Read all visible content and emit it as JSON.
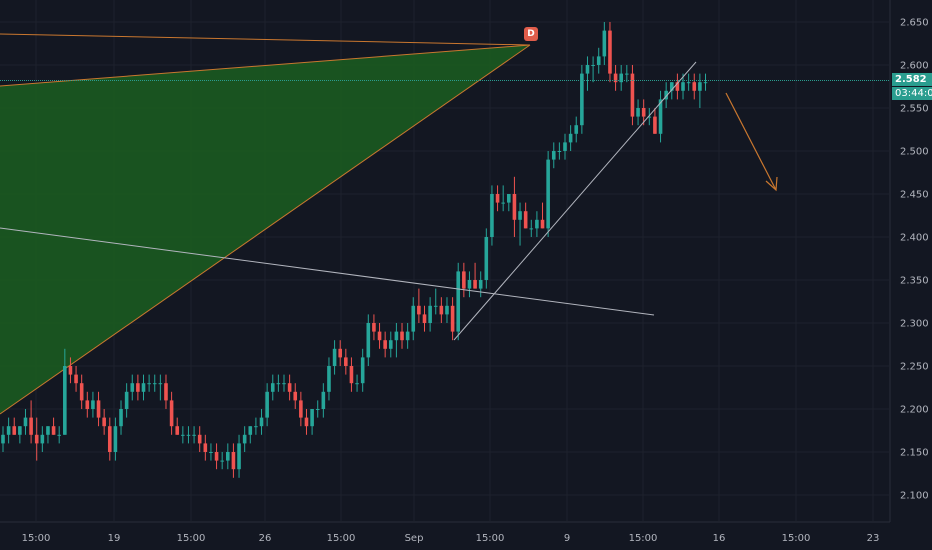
{
  "chart_data": {
    "type": "candlestick",
    "title": "",
    "ylim": [
      2.07,
      2.67
    ],
    "y_ticks": [
      "2.650",
      "2.600",
      "2.550",
      "2.500",
      "2.450",
      "2.400",
      "2.350",
      "2.300",
      "2.250",
      "2.200",
      "2.150",
      "2.100"
    ],
    "x_ticks": [
      "15:00",
      "19",
      "15:00",
      "26",
      "15:00",
      "Sep",
      "15:00",
      "9",
      "15:00",
      "16",
      "15:00",
      "23"
    ],
    "candles": [
      [
        2.16,
        2.18,
        2.15,
        2.17
      ],
      [
        2.17,
        2.19,
        2.16,
        2.18
      ],
      [
        2.18,
        2.19,
        2.17,
        2.17
      ],
      [
        2.17,
        2.18,
        2.16,
        2.18
      ],
      [
        2.18,
        2.2,
        2.17,
        2.19
      ],
      [
        2.19,
        2.21,
        2.16,
        2.17
      ],
      [
        2.17,
        2.19,
        2.14,
        2.16
      ],
      [
        2.16,
        2.18,
        2.15,
        2.17
      ],
      [
        2.17,
        2.18,
        2.16,
        2.18
      ],
      [
        2.18,
        2.19,
        2.17,
        2.17
      ],
      [
        2.17,
        2.18,
        2.16,
        2.17
      ],
      [
        2.17,
        2.27,
        2.17,
        2.25
      ],
      [
        2.25,
        2.26,
        2.23,
        2.24
      ],
      [
        2.24,
        2.25,
        2.22,
        2.23
      ],
      [
        2.23,
        2.24,
        2.2,
        2.21
      ],
      [
        2.21,
        2.22,
        2.19,
        2.2
      ],
      [
        2.2,
        2.22,
        2.19,
        2.21
      ],
      [
        2.21,
        2.22,
        2.18,
        2.19
      ],
      [
        2.19,
        2.2,
        2.17,
        2.18
      ],
      [
        2.18,
        2.19,
        2.14,
        2.15
      ],
      [
        2.15,
        2.19,
        2.14,
        2.18
      ],
      [
        2.18,
        2.21,
        2.17,
        2.2
      ],
      [
        2.2,
        2.23,
        2.19,
        2.22
      ],
      [
        2.22,
        2.24,
        2.21,
        2.23
      ],
      [
        2.23,
        2.24,
        2.21,
        2.22
      ],
      [
        2.22,
        2.24,
        2.21,
        2.23
      ],
      [
        2.23,
        2.24,
        2.22,
        2.23
      ],
      [
        2.23,
        2.24,
        2.22,
        2.23
      ],
      [
        2.23,
        2.24,
        2.21,
        2.23
      ],
      [
        2.23,
        2.24,
        2.2,
        2.21
      ],
      [
        2.21,
        2.22,
        2.17,
        2.18
      ],
      [
        2.18,
        2.19,
        2.17,
        2.17
      ],
      [
        2.17,
        2.18,
        2.16,
        2.17
      ],
      [
        2.17,
        2.18,
        2.16,
        2.17
      ],
      [
        2.17,
        2.18,
        2.16,
        2.17
      ],
      [
        2.17,
        2.18,
        2.15,
        2.16
      ],
      [
        2.16,
        2.17,
        2.14,
        2.15
      ],
      [
        2.15,
        2.16,
        2.14,
        2.15
      ],
      [
        2.15,
        2.16,
        2.13,
        2.14
      ],
      [
        2.14,
        2.15,
        2.13,
        2.14
      ],
      [
        2.14,
        2.16,
        2.13,
        2.15
      ],
      [
        2.15,
        2.16,
        2.12,
        2.13
      ],
      [
        2.13,
        2.17,
        2.12,
        2.16
      ],
      [
        2.16,
        2.18,
        2.15,
        2.17
      ],
      [
        2.17,
        2.18,
        2.16,
        2.18
      ],
      [
        2.18,
        2.19,
        2.17,
        2.18
      ],
      [
        2.18,
        2.2,
        2.17,
        2.19
      ],
      [
        2.19,
        2.23,
        2.18,
        2.22
      ],
      [
        2.22,
        2.24,
        2.21,
        2.23
      ],
      [
        2.23,
        2.24,
        2.22,
        2.23
      ],
      [
        2.23,
        2.24,
        2.22,
        2.23
      ],
      [
        2.23,
        2.24,
        2.21,
        2.22
      ],
      [
        2.22,
        2.23,
        2.2,
        2.21
      ],
      [
        2.21,
        2.22,
        2.18,
        2.19
      ],
      [
        2.19,
        2.2,
        2.17,
        2.18
      ],
      [
        2.18,
        2.2,
        2.17,
        2.2
      ],
      [
        2.2,
        2.21,
        2.19,
        2.2
      ],
      [
        2.2,
        2.23,
        2.19,
        2.22
      ],
      [
        2.22,
        2.26,
        2.21,
        2.25
      ],
      [
        2.25,
        2.28,
        2.24,
        2.27
      ],
      [
        2.27,
        2.28,
        2.25,
        2.26
      ],
      [
        2.26,
        2.27,
        2.24,
        2.25
      ],
      [
        2.25,
        2.26,
        2.22,
        2.23
      ],
      [
        2.23,
        2.24,
        2.22,
        2.23
      ],
      [
        2.23,
        2.27,
        2.22,
        2.26
      ],
      [
        2.26,
        2.31,
        2.25,
        2.3
      ],
      [
        2.3,
        2.31,
        2.28,
        2.29
      ],
      [
        2.29,
        2.3,
        2.27,
        2.28
      ],
      [
        2.28,
        2.29,
        2.26,
        2.27
      ],
      [
        2.27,
        2.29,
        2.26,
        2.28
      ],
      [
        2.28,
        2.3,
        2.26,
        2.29
      ],
      [
        2.29,
        2.3,
        2.27,
        2.28
      ],
      [
        2.28,
        2.3,
        2.27,
        2.29
      ],
      [
        2.29,
        2.33,
        2.28,
        2.32
      ],
      [
        2.32,
        2.34,
        2.3,
        2.31
      ],
      [
        2.31,
        2.32,
        2.29,
        2.3
      ],
      [
        2.3,
        2.33,
        2.29,
        2.32
      ],
      [
        2.32,
        2.34,
        2.31,
        2.32
      ],
      [
        2.32,
        2.33,
        2.3,
        2.31
      ],
      [
        2.31,
        2.33,
        2.3,
        2.32
      ],
      [
        2.32,
        2.33,
        2.28,
        2.29
      ],
      [
        2.29,
        2.37,
        2.28,
        2.36
      ],
      [
        2.36,
        2.37,
        2.33,
        2.34
      ],
      [
        2.34,
        2.36,
        2.33,
        2.35
      ],
      [
        2.35,
        2.37,
        2.34,
        2.34
      ],
      [
        2.34,
        2.36,
        2.33,
        2.35
      ],
      [
        2.35,
        2.41,
        2.34,
        2.4
      ],
      [
        2.4,
        2.46,
        2.39,
        2.45
      ],
      [
        2.45,
        2.46,
        2.43,
        2.44
      ],
      [
        2.44,
        2.46,
        2.43,
        2.44
      ],
      [
        2.44,
        2.45,
        2.43,
        2.45
      ],
      [
        2.45,
        2.47,
        2.4,
        2.42
      ],
      [
        2.42,
        2.44,
        2.39,
        2.43
      ],
      [
        2.43,
        2.44,
        2.41,
        2.41
      ],
      [
        2.41,
        2.42,
        2.4,
        2.41
      ],
      [
        2.41,
        2.43,
        2.4,
        2.42
      ],
      [
        2.42,
        2.44,
        2.41,
        2.41
      ],
      [
        2.41,
        2.5,
        2.4,
        2.49
      ],
      [
        2.49,
        2.51,
        2.48,
        2.5
      ],
      [
        2.5,
        2.51,
        2.49,
        2.5
      ],
      [
        2.5,
        2.52,
        2.49,
        2.51
      ],
      [
        2.51,
        2.53,
        2.5,
        2.52
      ],
      [
        2.52,
        2.54,
        2.51,
        2.53
      ],
      [
        2.53,
        2.6,
        2.52,
        2.59
      ],
      [
        2.59,
        2.61,
        2.57,
        2.6
      ],
      [
        2.6,
        2.61,
        2.58,
        2.6
      ],
      [
        2.6,
        2.62,
        2.59,
        2.61
      ],
      [
        2.61,
        2.65,
        2.6,
        2.64
      ],
      [
        2.64,
        2.65,
        2.58,
        2.59
      ],
      [
        2.59,
        2.6,
        2.57,
        2.58
      ],
      [
        2.58,
        2.6,
        2.57,
        2.59
      ],
      [
        2.59,
        2.6,
        2.58,
        2.59
      ],
      [
        2.59,
        2.6,
        2.53,
        2.54
      ],
      [
        2.54,
        2.56,
        2.53,
        2.55
      ],
      [
        2.55,
        2.56,
        2.53,
        2.54
      ],
      [
        2.54,
        2.55,
        2.53,
        2.54
      ],
      [
        2.54,
        2.55,
        2.52,
        2.52
      ],
      [
        2.52,
        2.57,
        2.51,
        2.56
      ],
      [
        2.56,
        2.58,
        2.55,
        2.57
      ],
      [
        2.57,
        2.58,
        2.56,
        2.58
      ],
      [
        2.58,
        2.59,
        2.56,
        2.57
      ],
      [
        2.57,
        2.59,
        2.56,
        2.58
      ],
      [
        2.58,
        2.59,
        2.57,
        2.58
      ],
      [
        2.58,
        2.59,
        2.56,
        2.57
      ],
      [
        2.57,
        2.59,
        2.55,
        2.58
      ],
      [
        2.58,
        2.59,
        2.57,
        2.58
      ]
    ],
    "last_price": "2.582",
    "countdown": "03:44:02",
    "pattern_badge": "D",
    "colors": {
      "background": "#131722",
      "up": "#26a69a",
      "down": "#ef5350",
      "grid": "#1e222d",
      "axis_text": "#b2b5be",
      "pattern_fill": "#1b5e20",
      "pattern_line": "#c9772f",
      "trendline": "#b2b5be",
      "arrow": "#c9772f",
      "price_line": "#2a9d8f",
      "badge": "#e05d4b"
    }
  }
}
